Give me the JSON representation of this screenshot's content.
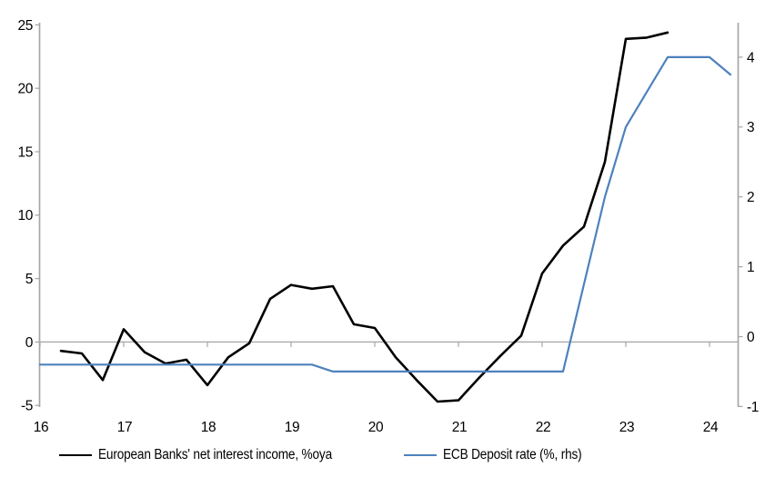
{
  "chart_data": {
    "type": "line",
    "title": "",
    "x_axis": {
      "tick_labels": [
        "16",
        "17",
        "18",
        "19",
        "20",
        "21",
        "22",
        "23",
        "24"
      ],
      "tick_values": [
        16,
        17,
        18,
        19,
        20,
        21,
        22,
        23,
        24
      ],
      "range": [
        16,
        24.35
      ],
      "ticks_on_zero_line": true
    },
    "left_axis": {
      "tick_labels": [
        "25",
        "20",
        "15",
        "10",
        "5",
        "0",
        "-5"
      ],
      "tick_values": [
        25,
        20,
        15,
        10,
        5,
        0,
        -5
      ],
      "range": [
        -5,
        25.2
      ]
    },
    "right_axis": {
      "tick_labels": [
        "4",
        "3",
        "2",
        "1",
        "0",
        "-1"
      ],
      "tick_values": [
        4,
        3,
        2,
        1,
        0,
        -1
      ],
      "range": [
        -1.01,
        4.49
      ]
    },
    "grid": "zero-line-only",
    "legend_position": "bottom",
    "axis_color": "#A6A6A6",
    "zero_line_color": "#A6A6A6",
    "series": [
      {
        "name": "European Banks' net interest income, %oya",
        "axis": "left",
        "color": "#000000",
        "stroke_width": 2.6,
        "points": [
          [
            16.25,
            -0.7
          ],
          [
            16.5,
            -0.9
          ],
          [
            16.75,
            -3.0
          ],
          [
            17.0,
            1.0
          ],
          [
            17.25,
            -0.8
          ],
          [
            17.5,
            -1.7
          ],
          [
            17.75,
            -1.4
          ],
          [
            18.0,
            -3.4
          ],
          [
            18.25,
            -1.2
          ],
          [
            18.5,
            -0.1
          ],
          [
            18.75,
            3.4
          ],
          [
            19.0,
            4.5
          ],
          [
            19.25,
            4.2
          ],
          [
            19.5,
            4.4
          ],
          [
            19.75,
            1.4
          ],
          [
            20.0,
            1.1
          ],
          [
            20.25,
            -1.2
          ],
          [
            20.5,
            -3.0
          ],
          [
            20.75,
            -4.7
          ],
          [
            21.0,
            -4.6
          ],
          [
            21.25,
            -2.8
          ],
          [
            21.5,
            -1.1
          ],
          [
            21.75,
            0.5
          ],
          [
            22.0,
            5.4
          ],
          [
            22.25,
            7.6
          ],
          [
            22.5,
            9.1
          ],
          [
            22.75,
            14.2
          ],
          [
            23.0,
            23.9
          ],
          [
            23.25,
            24.0
          ],
          [
            23.5,
            24.4
          ]
        ]
      },
      {
        "name": "ECB Deposit rate (%, rhs)",
        "axis": "right",
        "color": "#4E81BD",
        "stroke_width": 2.2,
        "points": [
          [
            16.0,
            -0.4
          ],
          [
            19.25,
            -0.4
          ],
          [
            19.5,
            -0.5
          ],
          [
            22.25,
            -0.5
          ],
          [
            22.5,
            0.75
          ],
          [
            22.75,
            2.0
          ],
          [
            23.0,
            3.0
          ],
          [
            23.25,
            3.5
          ],
          [
            23.5,
            4.0
          ],
          [
            23.75,
            4.0
          ],
          [
            24.0,
            4.0
          ],
          [
            24.25,
            3.75
          ]
        ]
      }
    ]
  },
  "legend": {
    "items": [
      {
        "label": "European Banks' net interest income, %oya",
        "color": "#000000",
        "thickness": 2.6
      },
      {
        "label": "ECB Deposit rate (%, rhs)",
        "color": "#4E81BD",
        "thickness": 2.2
      }
    ]
  }
}
